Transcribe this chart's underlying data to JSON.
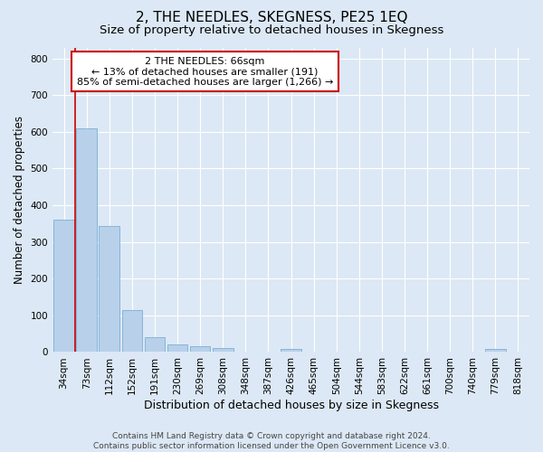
{
  "title": "2, THE NEEDLES, SKEGNESS, PE25 1EQ",
  "subtitle": "Size of property relative to detached houses in Skegness",
  "xlabel": "Distribution of detached houses by size in Skegness",
  "ylabel": "Number of detached properties",
  "categories": [
    "34sqm",
    "73sqm",
    "112sqm",
    "152sqm",
    "191sqm",
    "230sqm",
    "269sqm",
    "308sqm",
    "348sqm",
    "387sqm",
    "426sqm",
    "465sqm",
    "504sqm",
    "544sqm",
    "583sqm",
    "622sqm",
    "661sqm",
    "700sqm",
    "740sqm",
    "779sqm",
    "818sqm"
  ],
  "values": [
    360,
    610,
    343,
    115,
    40,
    22,
    17,
    11,
    0,
    0,
    9,
    0,
    0,
    0,
    0,
    0,
    0,
    0,
    0,
    9,
    0
  ],
  "bar_color": "#b8d0ea",
  "bar_edge_color": "#7bafd4",
  "bar_edge_width": 0.6,
  "bg_color": "#dce8f5",
  "grid_color": "#ffffff",
  "ylim_max": 830,
  "yticks": [
    0,
    100,
    200,
    300,
    400,
    500,
    600,
    700,
    800
  ],
  "property_line_color": "#cc0000",
  "annotation_line1": "2 THE NEEDLES: 66sqm",
  "annotation_line2": "← 13% of detached houses are smaller (191)",
  "annotation_line3": "85% of semi-detached houses are larger (1,266) →",
  "annotation_box_edgecolor": "#cc0000",
  "footer_line1": "Contains HM Land Registry data © Crown copyright and database right 2024.",
  "footer_line2": "Contains public sector information licensed under the Open Government Licence v3.0.",
  "title_fontsize": 11,
  "subtitle_fontsize": 9.5,
  "xlabel_fontsize": 9,
  "ylabel_fontsize": 8.5,
  "tick_fontsize": 7.5,
  "footer_fontsize": 6.5,
  "annot_fontsize": 8
}
